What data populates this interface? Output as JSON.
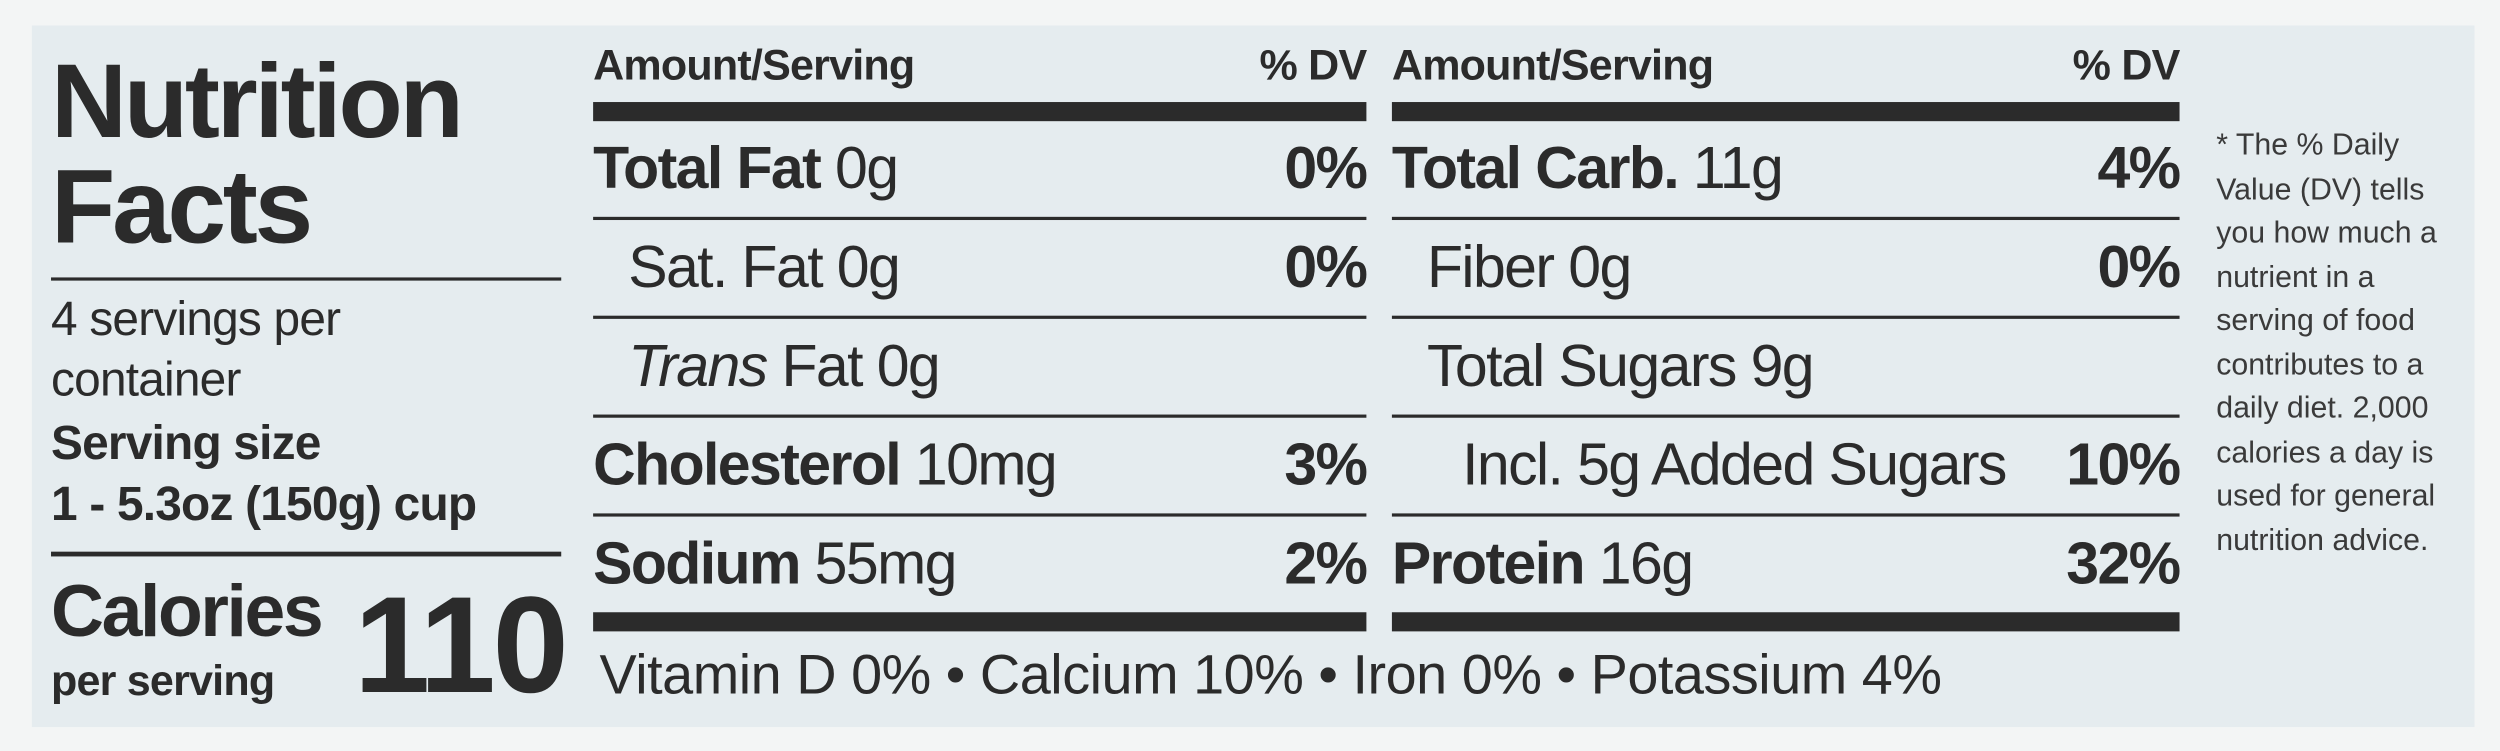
{
  "title": "Nutrition Facts",
  "servings": "4 servings per container",
  "serving_size_label": "Serving size",
  "serving_size": "1 - 5.3oz (150g) cup",
  "calories_label": "Calories",
  "calories_sub": "per serving",
  "calories": 110,
  "columns": [
    {
      "header": {
        "amount": "Amount/Serving",
        "dv": "% DV"
      },
      "rows": [
        {
          "name": "Total Fat",
          "amount": "0g",
          "dv": "0%"
        },
        {
          "name": "Sat. Fat",
          "amount": "0g",
          "dv": "0%"
        },
        {
          "name_italic": "Trans",
          "name": "Fat",
          "amount": "0g"
        },
        {
          "name": "Cholesterol",
          "amount": "10mg",
          "dv": "3%"
        },
        {
          "name": "Sodium",
          "amount": "55mg",
          "dv": "2%"
        }
      ]
    },
    {
      "header": {
        "amount": "Amount/Serving",
        "dv": "% DV"
      },
      "rows": [
        {
          "name": "Total Carb.",
          "amount": "11g",
          "dv": "4%"
        },
        {
          "name": "Fiber",
          "amount": "0g",
          "dv": "0%"
        },
        {
          "name": "Total Sugars",
          "amount": "9g"
        },
        {
          "name": "Incl. 5g Added Sugars",
          "dv": "10%"
        },
        {
          "name": "Protein",
          "amount": "16g",
          "dv": "32%"
        }
      ]
    }
  ],
  "vitamins": "Vitamin D 0% • Calcium 10% • Iron 0% • Potassium 4%",
  "footnote": "* The % Daily Value (DV) tells you how much a nutrient in a serving of food contributes to a daily diet. 2,000 calories a day is used for general nutrition advice."
}
